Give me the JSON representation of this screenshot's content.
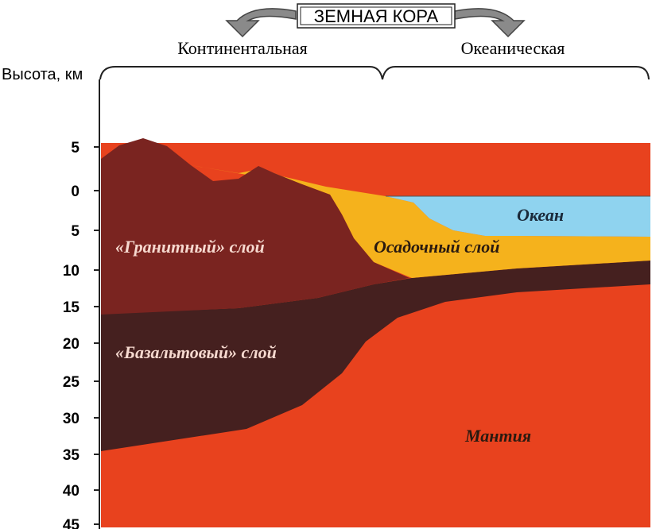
{
  "header": {
    "title": "ЗЕМНАЯ КОРА",
    "left": "Континентальная",
    "right": "Океаническая"
  },
  "axis": {
    "label": "Высота, км",
    "ticks": [
      "5",
      "0",
      "5",
      "10",
      "15",
      "20",
      "25",
      "30",
      "35",
      "40",
      "45"
    ]
  },
  "layers": {
    "granite": "«Гранитный» слой",
    "basalt": "«Базальтовый» слой",
    "sediment": "Осадочный слой",
    "ocean": "Океан",
    "mantle": "Мантия"
  }
}
